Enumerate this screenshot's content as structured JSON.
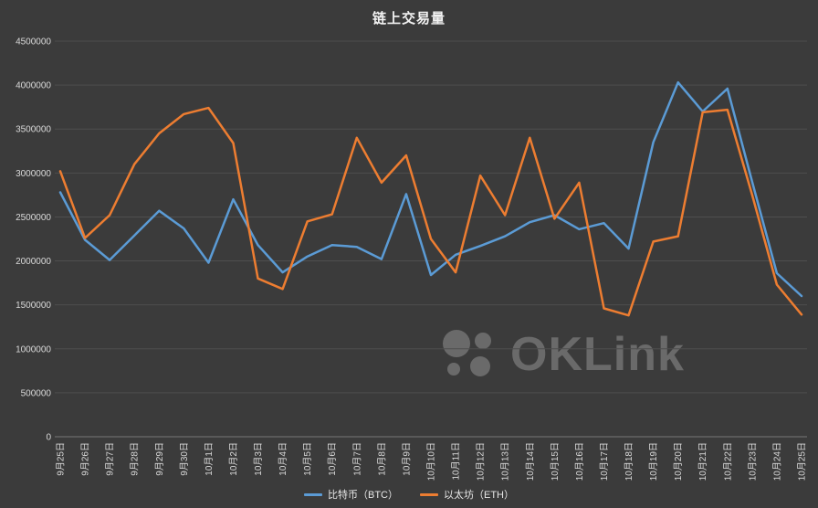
{
  "chart_data": {
    "type": "line",
    "title": "链上交易量",
    "categories": [
      "9月25日",
      "9月26日",
      "9月27日",
      "9月28日",
      "9月29日",
      "9月30日",
      "10月1日",
      "10月2日",
      "10月3日",
      "10月4日",
      "10月5日",
      "10月6日",
      "10月7日",
      "10月8日",
      "10月9日",
      "10月10日",
      "10月11日",
      "10月12日",
      "10月13日",
      "10月14日",
      "10月15日",
      "10月16日",
      "10月17日",
      "10月18日",
      "10月19日",
      "10月20日",
      "10月21日",
      "10月22日",
      "10月23日",
      "10月24日",
      "10月25日"
    ],
    "series": [
      {
        "name": "比特币（BTC）",
        "color": "#5B9BD5",
        "values": [
          2780000,
          2240000,
          2010000,
          2290000,
          2570000,
          2370000,
          1980000,
          2700000,
          2180000,
          1870000,
          2050000,
          2180000,
          2160000,
          2020000,
          2760000,
          1840000,
          2070000,
          2170000,
          2280000,
          2440000,
          2520000,
          2360000,
          2430000,
          2140000,
          3350000,
          4030000,
          3700000,
          3960000,
          2900000,
          1860000,
          1600000
        ]
      },
      {
        "name": "以太坊（ETH）",
        "color": "#ED7D31",
        "values": [
          3020000,
          2260000,
          2520000,
          3100000,
          3450000,
          3670000,
          3740000,
          3340000,
          1800000,
          1680000,
          2450000,
          2530000,
          3400000,
          2890000,
          3200000,
          2250000,
          1870000,
          2970000,
          2520000,
          3400000,
          2480000,
          2890000,
          1460000,
          1380000,
          2220000,
          2280000,
          3690000,
          3720000,
          2750000,
          1730000,
          1390000
        ]
      }
    ],
    "ylim": [
      0,
      4500000
    ],
    "ytick_step": 500000,
    "grid": true,
    "legend_position": "bottom",
    "background_color": "#3b3b3b",
    "gridline_color": "#4e4e4e",
    "axis_text_color": "#d9d9d9"
  },
  "watermark": {
    "text": "OKLink"
  }
}
